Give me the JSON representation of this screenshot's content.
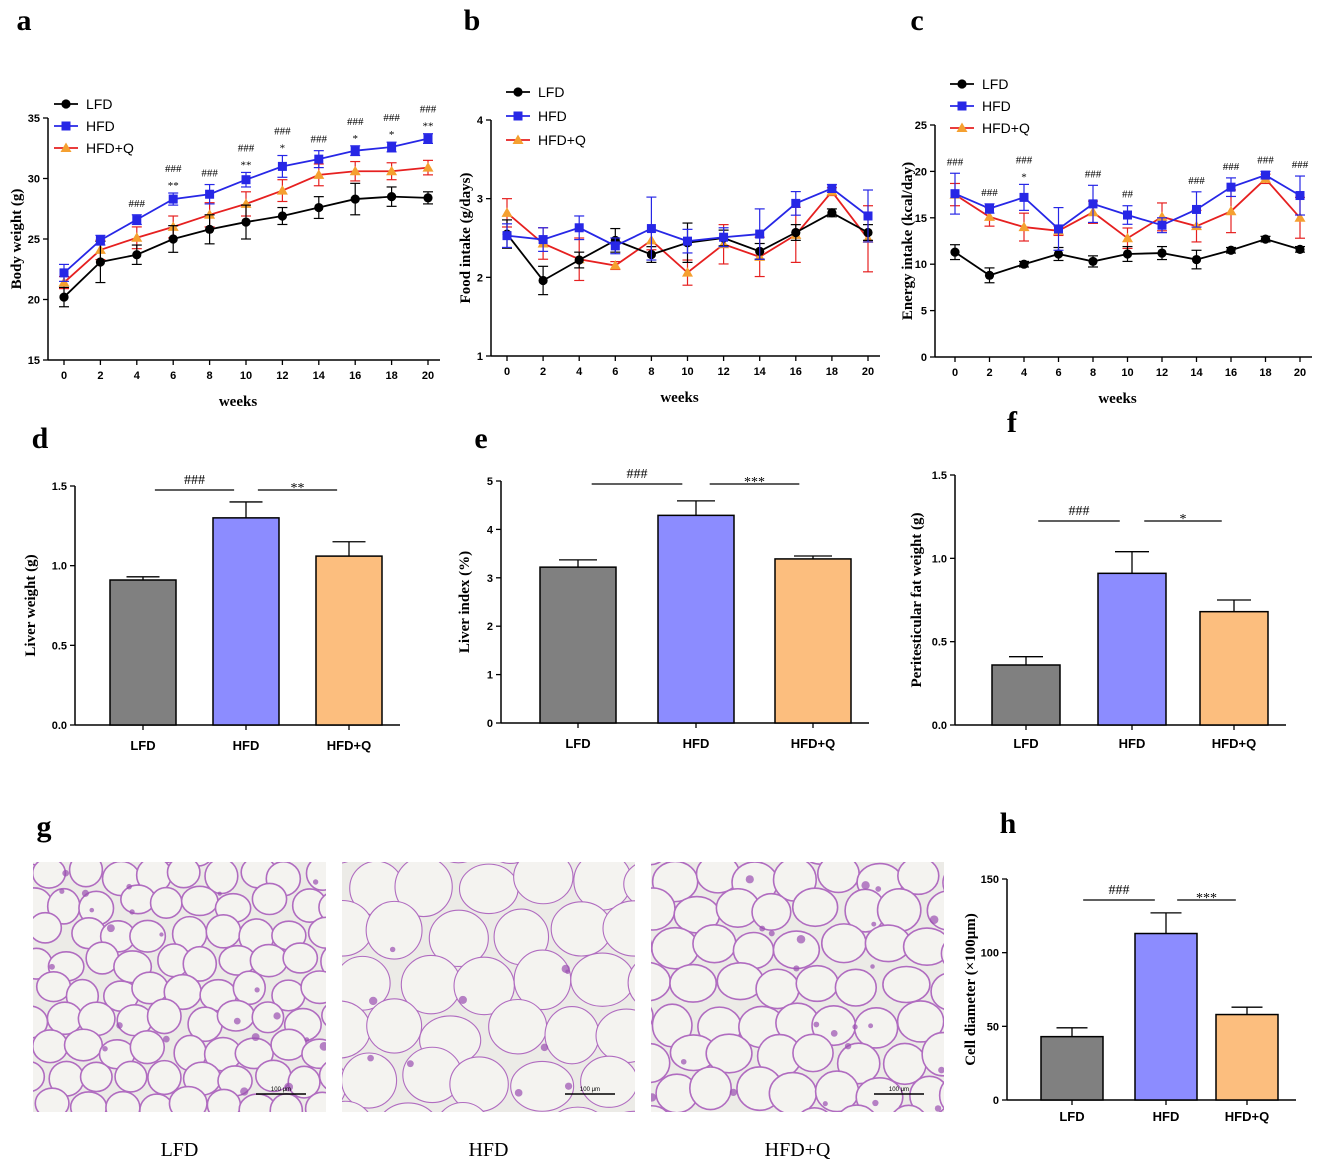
{
  "colors": {
    "LFD_line": "#000000",
    "HFD_line": "#2727e6",
    "HFDQ_line": "#e62020",
    "HFDQ_marker": "#f5a030",
    "LFD_bar": "#808080",
    "HFD_bar": "#8c8cff",
    "HFDQ_bar": "#fcbe7e",
    "histo_bg": "#ecebe7",
    "histo_stain": "#b06cc0"
  },
  "histology": {
    "label": "g",
    "panels": [
      {
        "caption": "LFD",
        "scale_bar": "100 μm"
      },
      {
        "caption": "HFD",
        "scale_bar": "100 μm"
      },
      {
        "caption": "HFD+Q",
        "scale_bar": "100 μm"
      }
    ]
  },
  "chart_data": [
    {
      "label": "a",
      "type": "line",
      "xlabel": "weeks",
      "ylabel": "Body weight (g)",
      "x": [
        0,
        2,
        4,
        6,
        8,
        10,
        12,
        14,
        16,
        18,
        20
      ],
      "xticks": [
        "0",
        "2",
        "4",
        "6",
        "8",
        "10",
        "12",
        "14",
        "16",
        "18",
        "20"
      ],
      "ylim": [
        15,
        35
      ],
      "yticks": [
        15,
        20,
        25,
        30,
        35
      ],
      "legend": [
        "LFD",
        "HFD",
        "HFD+Q"
      ],
      "series": [
        {
          "name": "LFD",
          "values": [
            20.2,
            23.1,
            23.7,
            25.0,
            25.8,
            26.4,
            26.9,
            27.6,
            28.3,
            28.5,
            28.4
          ],
          "err": [
            0.8,
            1.7,
            0.8,
            1.1,
            1.2,
            1.4,
            0.7,
            0.9,
            1.3,
            0.8,
            0.5
          ]
        },
        {
          "name": "HFD",
          "values": [
            22.2,
            24.9,
            26.6,
            28.3,
            28.7,
            29.9,
            31.0,
            31.6,
            32.3,
            32.6,
            33.3
          ],
          "err": [
            0.7,
            0.4,
            0.4,
            0.5,
            0.8,
            0.6,
            0.9,
            0.7,
            0.4,
            0.4,
            0.4
          ]
        },
        {
          "name": "HFD+Q",
          "values": [
            21.4,
            24.1,
            25.1,
            26.0,
            27.0,
            27.9,
            29.0,
            30.3,
            30.6,
            30.6,
            30.9
          ],
          "err": [
            0.5,
            0.8,
            0.9,
            0.9,
            1.0,
            1.0,
            0.9,
            0.9,
            0.8,
            0.7,
            0.6
          ]
        }
      ],
      "annotations": [
        {
          "x": 4,
          "texts": [
            "###"
          ]
        },
        {
          "x": 6,
          "texts": [
            "###",
            "**"
          ]
        },
        {
          "x": 8,
          "texts": [
            "###"
          ]
        },
        {
          "x": 10,
          "texts": [
            "###",
            "**"
          ]
        },
        {
          "x": 12,
          "texts": [
            "###",
            "*"
          ]
        },
        {
          "x": 14,
          "texts": [
            "###"
          ]
        },
        {
          "x": 16,
          "texts": [
            "###",
            "*"
          ]
        },
        {
          "x": 18,
          "texts": [
            "###",
            "*"
          ]
        },
        {
          "x": 20,
          "texts": [
            "###",
            "**"
          ]
        }
      ]
    },
    {
      "label": "b",
      "type": "line",
      "xlabel": "weeks",
      "ylabel": "Food intake (g/days)",
      "x": [
        0,
        2,
        4,
        6,
        8,
        10,
        12,
        14,
        16,
        18,
        20
      ],
      "xticks": [
        "0",
        "2",
        "4",
        "6",
        "8",
        "10",
        "12",
        "14",
        "16",
        "18",
        "20"
      ],
      "ylim": [
        1,
        4
      ],
      "yticks": [
        1,
        2,
        3,
        4
      ],
      "legend": [
        "LFD",
        "HFD",
        "HFD+Q"
      ],
      "series": [
        {
          "name": "LFD",
          "values": [
            2.55,
            1.96,
            2.22,
            2.47,
            2.29,
            2.44,
            2.5,
            2.33,
            2.57,
            2.82,
            2.57
          ],
          "err": [
            0.18,
            0.18,
            0.1,
            0.15,
            0.1,
            0.25,
            0.1,
            0.1,
            0.1,
            0.05,
            0.1
          ]
        },
        {
          "name": "HFD",
          "values": [
            2.53,
            2.48,
            2.63,
            2.4,
            2.62,
            2.46,
            2.51,
            2.55,
            2.94,
            3.13,
            2.78
          ],
          "err": [
            0.15,
            0.15,
            0.15,
            0.1,
            0.4,
            0.15,
            0.12,
            0.32,
            0.15,
            0.05,
            0.33
          ]
        },
        {
          "name": "HFD+Q",
          "values": [
            2.82,
            2.43,
            2.23,
            2.15,
            2.47,
            2.06,
            2.42,
            2.26,
            2.54,
            3.09,
            2.49
          ],
          "err": [
            0.18,
            0.2,
            0.27,
            0.05,
            0.12,
            0.16,
            0.25,
            0.25,
            0.35,
            0.05,
            0.42
          ]
        }
      ]
    },
    {
      "label": "c",
      "type": "line",
      "xlabel": "weeks",
      "ylabel": "Energy intake (kcal/day)",
      "x": [
        0,
        2,
        4,
        6,
        8,
        10,
        12,
        14,
        16,
        18,
        20
      ],
      "xticks": [
        "0",
        "2",
        "4",
        "6",
        "8",
        "10",
        "12",
        "14",
        "16",
        "18",
        "20"
      ],
      "ylim": [
        0,
        25
      ],
      "yticks": [
        0,
        5,
        10,
        15,
        20,
        25
      ],
      "legend": [
        "LFD",
        "HFD",
        "HFD+Q"
      ],
      "series": [
        {
          "name": "LFD",
          "values": [
            11.3,
            8.8,
            10.0,
            11.1,
            10.3,
            11.1,
            11.2,
            10.5,
            11.5,
            12.7,
            11.6
          ],
          "err": [
            0.8,
            0.8,
            0.3,
            0.7,
            0.6,
            0.8,
            0.7,
            1.0,
            0.3,
            0.3,
            0.3
          ]
        },
        {
          "name": "HFD",
          "values": [
            17.6,
            16.0,
            17.2,
            13.8,
            16.5,
            15.3,
            14.2,
            15.9,
            18.3,
            19.6,
            17.4
          ],
          "err": [
            2.2,
            0.5,
            1.4,
            2.3,
            2.0,
            1.0,
            0.8,
            1.9,
            1.0,
            0.4,
            2.1
          ]
        },
        {
          "name": "HFD+Q",
          "values": [
            17.5,
            15.1,
            14.0,
            13.6,
            15.6,
            12.8,
            15.1,
            14.1,
            15.7,
            19.2,
            15.0
          ],
          "err": [
            1.2,
            1.0,
            1.5,
            0.5,
            1.2,
            1.1,
            1.5,
            1.7,
            2.3,
            0.5,
            2.2
          ]
        }
      ],
      "annotations": [
        {
          "x": 0,
          "texts": [
            "###"
          ]
        },
        {
          "x": 2,
          "texts": [
            "###"
          ]
        },
        {
          "x": 4,
          "texts": [
            "###",
            "*"
          ]
        },
        {
          "x": 8,
          "texts": [
            "###"
          ]
        },
        {
          "x": 10,
          "texts": [
            "##"
          ]
        },
        {
          "x": 14,
          "texts": [
            "###"
          ]
        },
        {
          "x": 16,
          "texts": [
            "###"
          ]
        },
        {
          "x": 18,
          "texts": [
            "###"
          ]
        },
        {
          "x": 20,
          "texts": [
            "###"
          ]
        }
      ]
    },
    {
      "label": "d",
      "type": "bar",
      "ylabel": "Liver weight (g)",
      "categories": [
        "LFD",
        "HFD",
        "HFD+Q"
      ],
      "values": [
        0.91,
        1.3,
        1.06
      ],
      "err": [
        0.02,
        0.1,
        0.09
      ],
      "ylim": [
        0,
        1.5
      ],
      "yticks": [
        "0.0",
        "0.5",
        "1.0",
        "1.5"
      ],
      "sig": [
        {
          "from": 0,
          "to": 1,
          "text": "###"
        },
        {
          "from": 1,
          "to": 2,
          "text": "**"
        }
      ]
    },
    {
      "label": "e",
      "type": "bar",
      "ylabel": "Liver index (%)",
      "categories": [
        "LFD",
        "HFD",
        "HFD+Q"
      ],
      "values": [
        3.22,
        4.29,
        3.39
      ],
      "err": [
        0.15,
        0.3,
        0.06
      ],
      "ylim": [
        0,
        5
      ],
      "yticks": [
        "0",
        "1",
        "2",
        "3",
        "4",
        "5"
      ],
      "sig": [
        {
          "from": 0,
          "to": 1,
          "text": "###"
        },
        {
          "from": 1,
          "to": 2,
          "text": "***"
        }
      ]
    },
    {
      "label": "f",
      "type": "bar",
      "ylabel": "Peritesticular fat weight (g)",
      "categories": [
        "LFD",
        "HFD",
        "HFD+Q"
      ],
      "values": [
        0.36,
        0.91,
        0.68
      ],
      "err": [
        0.05,
        0.13,
        0.07
      ],
      "ylim": [
        0,
        1.5
      ],
      "yticks": [
        "0.0",
        "0.5",
        "1.0",
        "1.5"
      ],
      "sig": [
        {
          "from": 0,
          "to": 1,
          "text": "###"
        },
        {
          "from": 1,
          "to": 2,
          "text": "*"
        }
      ]
    },
    {
      "label": "h",
      "type": "bar",
      "ylabel": "Cell diameter (×100μm)",
      "categories": [
        "LFD",
        "HFD",
        "HFD+Q"
      ],
      "values": [
        43,
        113,
        58
      ],
      "err": [
        6,
        14,
        5
      ],
      "ylim": [
        0,
        150
      ],
      "yticks": [
        "0",
        "50",
        "100",
        "150"
      ],
      "sig": [
        {
          "from": 0,
          "to": 1,
          "text": "###"
        },
        {
          "from": 1,
          "to": 2,
          "text": "***"
        }
      ]
    }
  ]
}
